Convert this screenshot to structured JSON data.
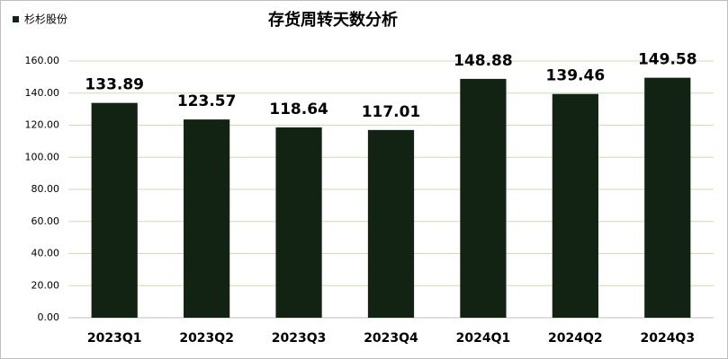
{
  "chart_data": {
    "type": "bar",
    "title": "存货周转天数分析",
    "categories": [
      "2023Q1",
      "2023Q2",
      "2023Q3",
      "2023Q4",
      "2024Q1",
      "2024Q2",
      "2024Q3"
    ],
    "series": [
      {
        "name": "杉杉股份",
        "color": "#132313",
        "values": [
          133.89,
          123.57,
          118.64,
          117.01,
          148.88,
          139.46,
          149.58
        ]
      }
    ],
    "ylim": [
      0,
      160
    ],
    "yticks": [
      {
        "value": 0,
        "label": "0.00"
      },
      {
        "value": 20,
        "label": "20.00"
      },
      {
        "value": 40,
        "label": "40.00"
      },
      {
        "value": 60,
        "label": "60.00"
      },
      {
        "value": 80,
        "label": "80.00"
      },
      {
        "value": 100,
        "label": "100.00"
      },
      {
        "value": 120,
        "label": "120.00"
      },
      {
        "value": 140,
        "label": "140.00"
      },
      {
        "value": 160,
        "label": "160.00"
      }
    ],
    "grid": true,
    "legend": "top-left"
  }
}
